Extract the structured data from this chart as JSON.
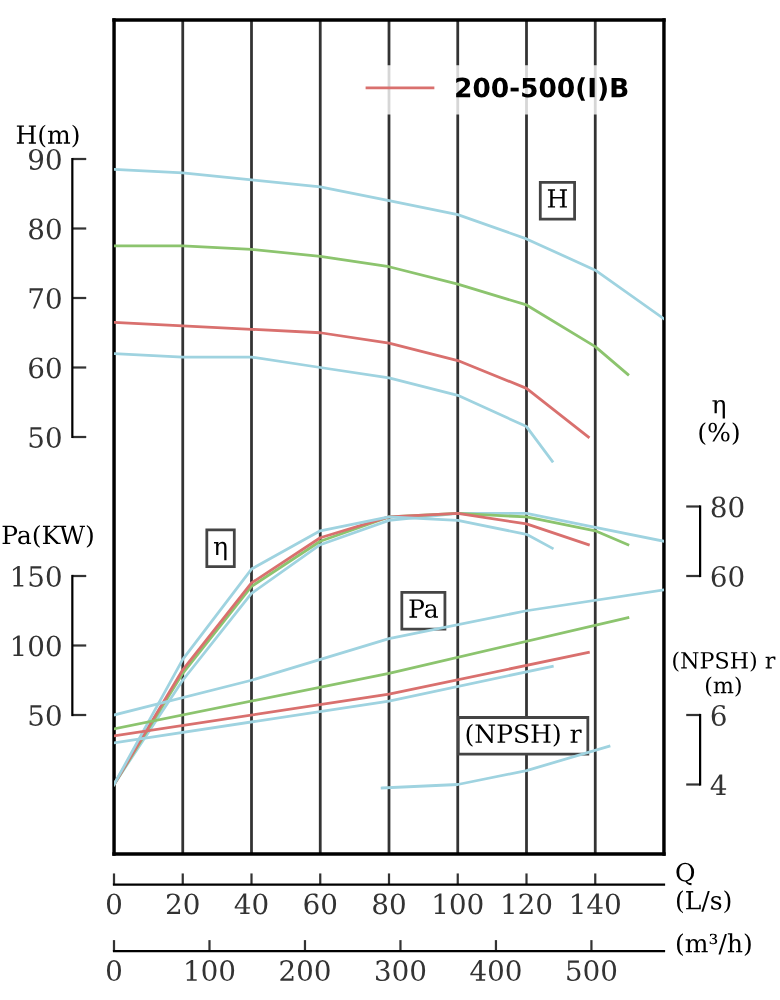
{
  "chart_data": [
    {
      "type": "line",
      "ylabel": "H(m)",
      "y2label": "η\n(%)",
      "y3label": "Pa(KW)",
      "xlabel": "Q\n(L/s)",
      "x2label": "(m³/h)",
      "annotations": [
        "H",
        "η",
        "Pa"
      ],
      "xlim": [
        0,
        160
      ],
      "xticks": [
        0,
        20,
        40,
        60,
        80,
        100,
        120,
        140
      ],
      "x2lim": [
        0,
        576
      ],
      "x2ticks": [
        0,
        100,
        200,
        300,
        400,
        500
      ],
      "ylim": [
        -10,
        110
      ],
      "yticks": [
        50,
        60,
        70,
        80,
        90
      ],
      "y2lim": [
        -20,
        220
      ],
      "y2ticks": [
        60,
        80
      ],
      "y3lim": [
        -50,
        550
      ],
      "y3ticks": [
        50,
        100,
        150
      ],
      "grid": true,
      "legend": "top right",
      "series": [
        {
          "color": "#9fd3e0",
          "axis": "y",
          "x": [
            0,
            20,
            40,
            60,
            80,
            100,
            120,
            140,
            160
          ],
          "values": [
            88.5,
            88,
            87,
            86,
            84,
            82,
            78.5,
            74,
            67
          ]
        },
        {
          "color": "#8cc46e",
          "axis": "y",
          "x": [
            0,
            20,
            40,
            60,
            80,
            100,
            120,
            140,
            149.5
          ],
          "values": [
            77.5,
            77.5,
            77,
            76,
            74.5,
            72,
            69,
            63,
            59
          ]
        },
        {
          "name": "200-500(I)B",
          "color": "#d9706e",
          "axis": "y",
          "x": [
            0,
            20,
            40,
            60,
            80,
            100,
            120,
            138
          ],
          "values": [
            66.5,
            66,
            65.5,
            65,
            63.5,
            61,
            57,
            50
          ]
        },
        {
          "color": "#9fd3e0",
          "axis": "y",
          "x": [
            0,
            20,
            40,
            60,
            80,
            100,
            120,
            127.5
          ],
          "values": [
            62,
            61.5,
            61.5,
            60,
            58.5,
            56,
            51.5,
            46.5
          ]
        },
        {
          "color": "#9fd3e0",
          "axis": "y2",
          "x": [
            0,
            20,
            40,
            60,
            80,
            100,
            120,
            140,
            160
          ],
          "values": [
            0,
            30,
            55,
            69,
            76,
            78,
            78,
            74,
            70
          ]
        },
        {
          "color": "#8cc46e",
          "axis": "y2",
          "x": [
            0,
            20,
            40,
            60,
            80,
            100,
            120,
            140,
            149.5
          ],
          "values": [
            0,
            32,
            57,
            70,
            77,
            78,
            77,
            73,
            69
          ]
        },
        {
          "color": "#d9706e",
          "axis": "y2",
          "x": [
            0,
            20,
            40,
            60,
            80,
            100,
            120,
            138
          ],
          "values": [
            0,
            33,
            58,
            71,
            77,
            78,
            75,
            69
          ]
        },
        {
          "color": "#9fd3e0",
          "axis": "y2",
          "x": [
            0,
            20,
            40,
            60,
            80,
            100,
            120,
            127.5
          ],
          "values": [
            0,
            36,
            62,
            73,
            77,
            76,
            72,
            68
          ]
        },
        {
          "color": "#9fd3e0",
          "axis": "y3",
          "x": [
            0,
            40,
            80,
            120,
            160
          ],
          "values": [
            50,
            75,
            105,
            125,
            140
          ]
        },
        {
          "color": "#8cc46e",
          "axis": "y3",
          "x": [
            0,
            80,
            149.5
          ],
          "values": [
            40,
            80,
            120
          ]
        },
        {
          "color": "#d9706e",
          "axis": "y3",
          "x": [
            0,
            80,
            138
          ],
          "values": [
            35,
            65,
            95
          ]
        },
        {
          "color": "#9fd3e0",
          "axis": "y3",
          "x": [
            0,
            80,
            127.5
          ],
          "values": [
            30,
            60,
            85
          ]
        }
      ]
    },
    {
      "type": "line",
      "ylabel": "(NPSH) r\n(m)",
      "annotations": [
        "(NPSH) r"
      ],
      "xlim": [
        0,
        160
      ],
      "ylim": [
        2,
        26
      ],
      "yticks": [
        4,
        6
      ],
      "series": [
        {
          "color": "#9fd3e0",
          "x": [
            78,
            100,
            120,
            144
          ],
          "values": [
            3.9,
            4,
            4.4,
            5.1
          ]
        }
      ]
    }
  ]
}
